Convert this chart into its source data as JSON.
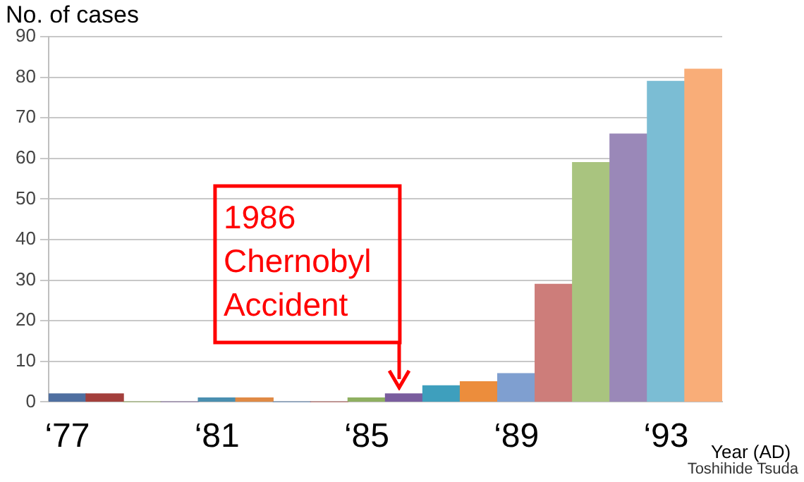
{
  "chart_data": {
    "type": "bar",
    "xlabel": "Year (AD)",
    "ylabel": "No. of cases",
    "categories": [
      "‘77",
      null,
      null,
      null,
      "‘81",
      null,
      null,
      null,
      "‘85",
      null,
      null,
      null,
      "‘89",
      null,
      null,
      null,
      "‘93",
      null
    ],
    "values": [
      2,
      2,
      0,
      0,
      1,
      1,
      0,
      0,
      1,
      2,
      4,
      5,
      7,
      29,
      59,
      66,
      79,
      82
    ],
    "colors": [
      "#4f6fa0",
      "#a33f3c",
      "#9bbb59",
      "#8064a2",
      "#4a8fb0",
      "#e08a45",
      "#4f81bd",
      "#c0504d",
      "#8fb061",
      "#7a5d9e",
      "#3e9fbd",
      "#ec8d3c",
      "#7f9fd0",
      "#cd7d7a",
      "#a9c47f",
      "#9a88b8",
      "#7bbdd4",
      "#f9ad78"
    ],
    "ylim": [
      0,
      90
    ],
    "yticks": [
      0,
      10,
      20,
      30,
      40,
      50,
      60,
      70,
      80,
      90
    ],
    "grid": "y",
    "legend": false,
    "annotations": [
      "1986\nChernobyl\nAccident",
      "Toshihide Tsuda"
    ]
  }
}
